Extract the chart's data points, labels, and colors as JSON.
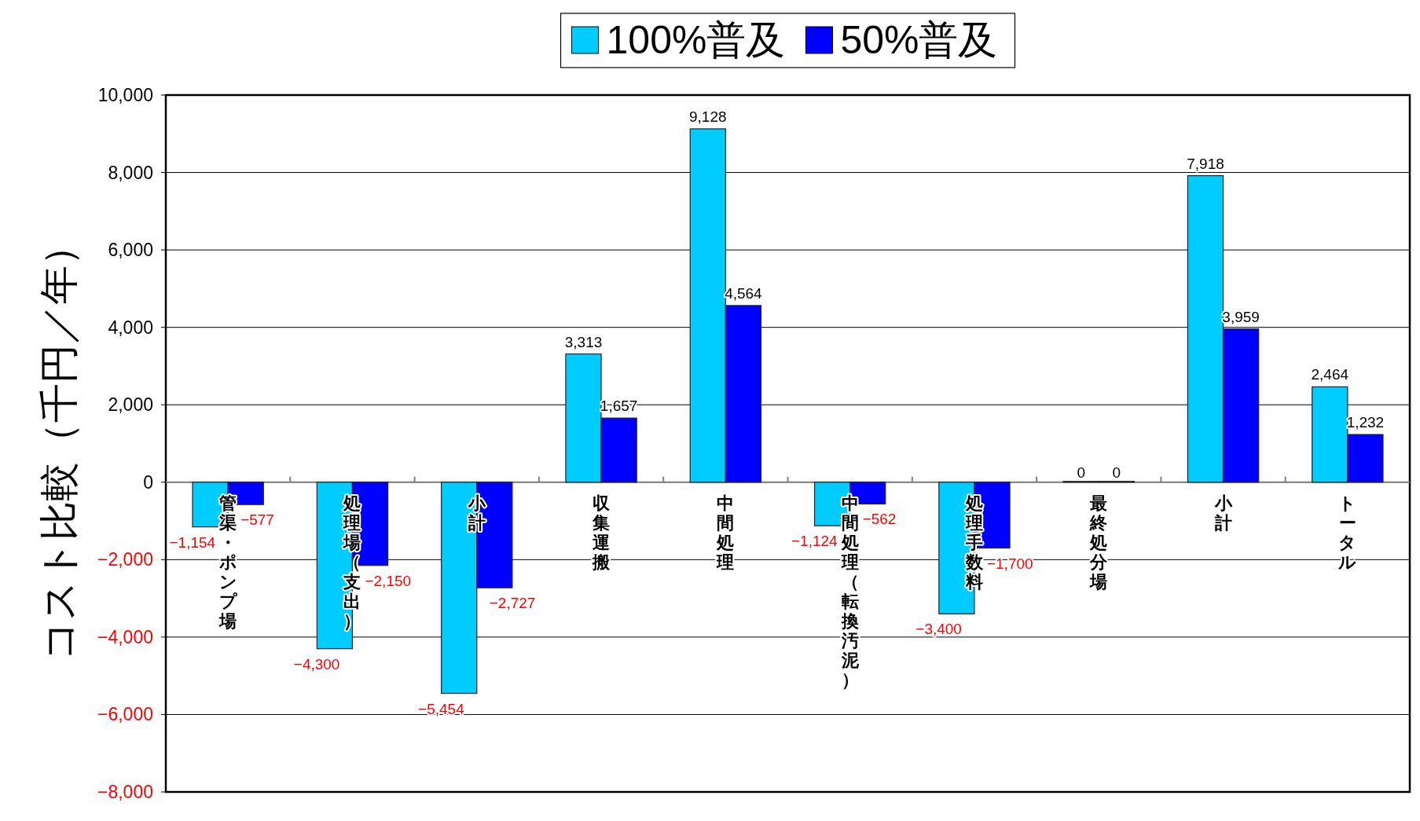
{
  "chart_data": {
    "type": "bar",
    "ylabel": "コスト比較（千円／年）",
    "categories": [
      "管渠・ポンプ場",
      "処理場（支出）",
      "小計",
      "収集運搬",
      "中間処理",
      "中間処理（転換汚泥）",
      "処理手数料",
      "最終処分場",
      "小計",
      "トータル"
    ],
    "series": [
      {
        "name": "100%普及",
        "color": "#00ccff",
        "values": [
          -1154,
          -4300,
          -5454,
          3313,
          9128,
          -1124,
          -3400,
          0,
          7918,
          2464
        ],
        "value_labels": [
          "−1,154",
          "−4,300",
          "−5,454",
          "3,313",
          "9,128",
          "−1,124",
          "−3,400",
          "0",
          "7,918",
          "2,464"
        ]
      },
      {
        "name": "50%普及",
        "color": "#0000ff",
        "values": [
          -577,
          -2150,
          -2727,
          1657,
          4564,
          -562,
          -1700,
          0,
          3959,
          1232
        ],
        "value_labels": [
          "−577",
          "−2,150",
          "−2,727",
          "1,657",
          "4,564",
          "−562",
          "−1,700",
          "0",
          "3,959",
          "1,232"
        ]
      }
    ],
    "ylim": [
      -8000,
      10000
    ],
    "yticks": [
      {
        "value": -8000,
        "label": "−8,000"
      },
      {
        "value": -6000,
        "label": "−6,000"
      },
      {
        "value": -4000,
        "label": "−4,000"
      },
      {
        "value": -2000,
        "label": "−2,000"
      },
      0,
      {
        "value": 2000,
        "label": "2,000"
      },
      {
        "value": 4000,
        "label": "4,000"
      },
      {
        "value": 6000,
        "label": "6,000"
      },
      {
        "value": 8000,
        "label": "8,000"
      },
      {
        "value": 10000,
        "label": "10,000"
      }
    ],
    "grid": "y",
    "legend": "top"
  }
}
